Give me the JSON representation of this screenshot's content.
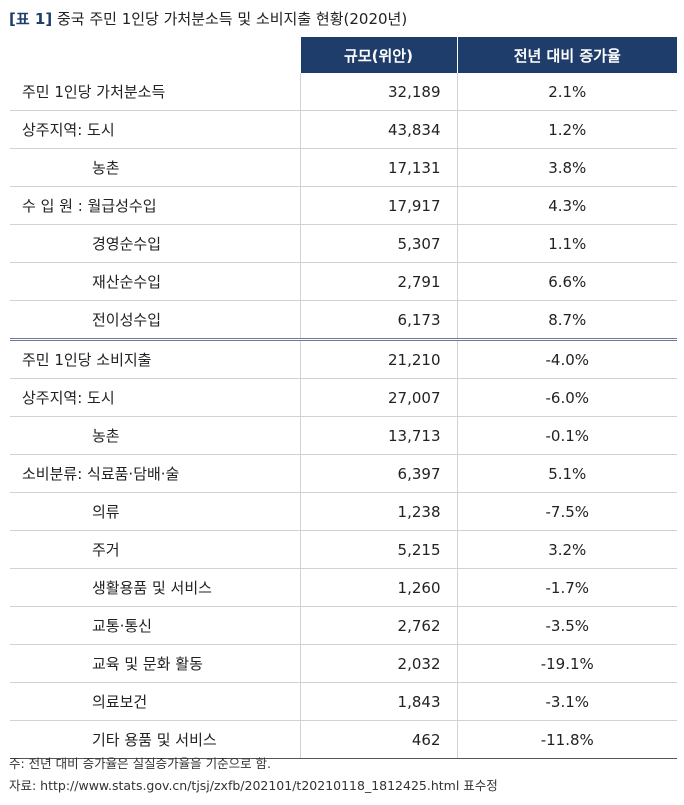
{
  "title": {
    "tag": "[표 1]",
    "text": "중국 주민 1인당 가처분소득 및 소비지출 현황(2020년)"
  },
  "table": {
    "headers": [
      "",
      "규모(위안)",
      "전년 대비 증가율"
    ],
    "rows": [
      {
        "label": "주민 1인당 가처분소득",
        "indent": false,
        "value": "32,189",
        "growth": "2.1%"
      },
      {
        "label": "상주지역: 도시",
        "indent": false,
        "value": "43,834",
        "growth": "1.2%"
      },
      {
        "label": "농촌",
        "indent": true,
        "value": "17,131",
        "growth": "3.8%"
      },
      {
        "label": "수 입 원 : 월급성수입",
        "indent": false,
        "value": "17,917",
        "growth": "4.3%"
      },
      {
        "label": "경영순수입",
        "indent": true,
        "value": "5,307",
        "growth": "1.1%"
      },
      {
        "label": "재산순수입",
        "indent": true,
        "value": "2,791",
        "growth": "6.6%"
      },
      {
        "label": "전이성수입",
        "indent": true,
        "value": "6,173",
        "growth": "8.7%"
      },
      {
        "label": "주민 1인당 소비지출",
        "indent": false,
        "value": "21,210",
        "growth": "-4.0%"
      },
      {
        "label": "상주지역: 도시",
        "indent": false,
        "value": "27,007",
        "growth": "-6.0%"
      },
      {
        "label": "농촌",
        "indent": true,
        "value": "13,713",
        "growth": "-0.1%"
      },
      {
        "label": "소비분류: 식료품·담배·술",
        "indent": false,
        "value": "6,397",
        "growth": "5.1%"
      },
      {
        "label": "의류",
        "indent": true,
        "value": "1,238",
        "growth": "-7.5%"
      },
      {
        "label": "주거",
        "indent": true,
        "value": "5,215",
        "growth": "3.2%"
      },
      {
        "label": "생활용품 및 서비스",
        "indent": true,
        "value": "1,260",
        "growth": "-1.7%"
      },
      {
        "label": "교통·통신",
        "indent": true,
        "value": "2,762",
        "growth": "-3.5%"
      },
      {
        "label": "교육 및 문화 활동",
        "indent": true,
        "value": "2,032",
        "growth": "-19.1%"
      },
      {
        "label": "의료보건",
        "indent": true,
        "value": "1,843",
        "growth": "-3.1%"
      },
      {
        "label": "기타 용품 및 서비스",
        "indent": true,
        "value": "462",
        "growth": "-11.8%"
      }
    ]
  },
  "notes": {
    "note": "주: 전년 대비 증가율은 실질증가율을 기준으로 함.",
    "source": "자료: http://www.stats.gov.cn/tjsj/zxfb/202101/t20210118_1812425.html 표수정"
  }
}
